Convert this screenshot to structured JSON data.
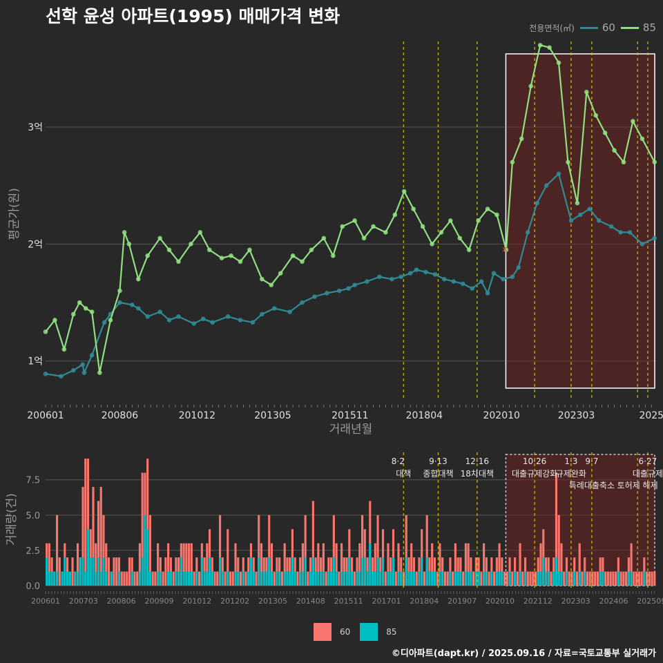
{
  "title": "선학 윤성 아파트(1995) 매매가격 변화",
  "legend": {
    "title": "전용면적(㎡)",
    "items": [
      {
        "label": "60",
        "line_color": "#2f8c96",
        "bar_color": "#f8766d"
      },
      {
        "label": "85",
        "line_color": "#90e080",
        "bar_color": "#00bfc4"
      }
    ]
  },
  "footer": "©디아파트(dapt.kr) / 2025.09.16 / 자료=국토교통부 실거래가",
  "chart_data": [
    {
      "type": "line",
      "title": "평균가",
      "xlabel": "거래년월",
      "ylabel": "평균가(원)",
      "x_tick_labels": [
        "200601",
        "200806",
        "201012",
        "201305",
        "201511",
        "201804",
        "202010",
        "202303",
        "2025"
      ],
      "y_tick_labels": [
        "1억",
        "2억",
        "3억"
      ],
      "y_ticks": [
        1,
        2,
        3
      ],
      "ylim": [
        0.65,
        3.85
      ],
      "xlim": [
        2006.0,
        2025.75
      ],
      "unit": "억원",
      "series": [
        {
          "name": "60",
          "x": [
            2006.0,
            2006.5,
            2006.9,
            2007.2,
            2007.25,
            2007.5,
            2007.9,
            2008.1,
            2008.4,
            2008.8,
            2009.0,
            2009.3,
            2009.7,
            2010.0,
            2010.3,
            2010.8,
            2011.1,
            2011.4,
            2011.9,
            2012.3,
            2012.7,
            2013.0,
            2013.4,
            2013.9,
            2014.3,
            2014.7,
            2015.1,
            2015.5,
            2015.8,
            2016.0,
            2016.4,
            2016.8,
            2017.2,
            2017.5,
            2017.8,
            2018.0,
            2018.3,
            2018.6,
            2018.9,
            2019.2,
            2019.5,
            2019.8,
            2020.1,
            2020.3,
            2020.5,
            2020.8,
            2021.1,
            2021.3,
            2021.6,
            2021.9,
            2022.2,
            2022.6,
            2023.0,
            2023.3,
            2023.6,
            2023.9,
            2024.3,
            2024.6,
            2024.9,
            2025.3,
            2025.7
          ],
          "y": [
            0.89,
            0.87,
            0.92,
            0.97,
            0.9,
            1.05,
            1.33,
            1.4,
            1.5,
            1.48,
            1.45,
            1.38,
            1.42,
            1.35,
            1.38,
            1.32,
            1.36,
            1.33,
            1.38,
            1.35,
            1.33,
            1.4,
            1.45,
            1.42,
            1.5,
            1.55,
            1.58,
            1.6,
            1.62,
            1.65,
            1.68,
            1.72,
            1.7,
            1.72,
            1.75,
            1.78,
            1.76,
            1.74,
            1.7,
            1.68,
            1.66,
            1.62,
            1.68,
            1.58,
            1.75,
            1.7,
            1.72,
            1.8,
            2.1,
            2.35,
            2.5,
            2.6,
            2.2,
            2.25,
            2.3,
            2.2,
            2.15,
            2.1,
            2.1,
            2.0,
            2.05
          ]
        },
        {
          "name": "85",
          "x": [
            2006.0,
            2006.3,
            2006.6,
            2006.9,
            2007.1,
            2007.3,
            2007.5,
            2007.75,
            2008.1,
            2008.4,
            2008.55,
            2008.7,
            2009.0,
            2009.3,
            2009.7,
            2010.0,
            2010.3,
            2010.7,
            2011.0,
            2011.3,
            2011.7,
            2012.0,
            2012.3,
            2012.6,
            2013.0,
            2013.3,
            2013.6,
            2014.0,
            2014.3,
            2014.6,
            2015.0,
            2015.3,
            2015.6,
            2016.0,
            2016.3,
            2016.6,
            2017.0,
            2017.3,
            2017.6,
            2017.9,
            2018.2,
            2018.5,
            2018.8,
            2019.1,
            2019.4,
            2019.7,
            2020.0,
            2020.3,
            2020.6,
            2020.9,
            2021.1,
            2021.4,
            2021.7,
            2022.0,
            2022.3,
            2022.6,
            2022.9,
            2023.2,
            2023.5,
            2023.8,
            2024.1,
            2024.4,
            2024.7,
            2025.0,
            2025.3,
            2025.7
          ],
          "y": [
            1.25,
            1.35,
            1.1,
            1.4,
            1.5,
            1.45,
            1.42,
            0.9,
            1.35,
            1.6,
            2.1,
            2.0,
            1.7,
            1.9,
            2.05,
            1.95,
            1.85,
            2.0,
            2.1,
            1.95,
            1.88,
            1.9,
            1.85,
            1.95,
            1.7,
            1.65,
            1.75,
            1.9,
            1.85,
            1.95,
            2.05,
            1.9,
            2.15,
            2.2,
            2.05,
            2.15,
            2.1,
            2.25,
            2.45,
            2.3,
            2.15,
            2.0,
            2.1,
            2.2,
            2.05,
            1.95,
            2.2,
            2.3,
            2.25,
            1.95,
            2.7,
            2.9,
            3.35,
            3.7,
            3.68,
            3.55,
            2.7,
            2.35,
            3.3,
            3.1,
            2.95,
            2.8,
            2.7,
            3.05,
            2.9,
            2.7
          ]
        }
      ]
    },
    {
      "type": "bar",
      "title": "거래량",
      "xlabel": "",
      "ylabel": "거래량(건)",
      "x_tick_labels": [
        "200601",
        "200703",
        "200806",
        "200909",
        "201012",
        "201202",
        "201305",
        "201408",
        "201511",
        "201701",
        "201804",
        "201907",
        "202010",
        "202112",
        "202303",
        "202406",
        "202509"
      ],
      "y_tick_labels": [
        "0.0",
        "2.5",
        "5.0",
        "7.5"
      ],
      "y_ticks": [
        0,
        2.5,
        5.0,
        7.5
      ],
      "ylim": [
        0,
        9.2
      ],
      "xlim": [
        2006.0,
        2025.75
      ],
      "series": [
        {
          "name": "60",
          "values": [
            3,
            3,
            2,
            1,
            5,
            2,
            1,
            3,
            2,
            1,
            2,
            1,
            3,
            2,
            7,
            9,
            9,
            4,
            7,
            3,
            6,
            7,
            5,
            3,
            2,
            1,
            2,
            2,
            2,
            1,
            1,
            1,
            2,
            2,
            1,
            1,
            3,
            8,
            8,
            9,
            5,
            1,
            1,
            3,
            2,
            1,
            2,
            3,
            2,
            1,
            2,
            2,
            3,
            3,
            3,
            3,
            3,
            1,
            2,
            1,
            3,
            2,
            3,
            4,
            2,
            1,
            1,
            5,
            2,
            1,
            4,
            1,
            1,
            3,
            2,
            1,
            2,
            1,
            2,
            3,
            2,
            1,
            5,
            3,
            2,
            2,
            5,
            3,
            1,
            2,
            2,
            1,
            3,
            2,
            2,
            4,
            2,
            1,
            2,
            3,
            5,
            1,
            2,
            6,
            2,
            3,
            2,
            3,
            1,
            2,
            2,
            5,
            3,
            1,
            3,
            2,
            2,
            4,
            2,
            1,
            2,
            3,
            5,
            4,
            2,
            6,
            2,
            3,
            5,
            2,
            4,
            1,
            3,
            2,
            4,
            1,
            3,
            2,
            1,
            5,
            2,
            3,
            2,
            1,
            2,
            4,
            1,
            5,
            2,
            3,
            2,
            1,
            3,
            2,
            1,
            1,
            2,
            1,
            3,
            2,
            2,
            1,
            3,
            3,
            2,
            1,
            2,
            2,
            1,
            3,
            2,
            1,
            2,
            1,
            2,
            3,
            2,
            1,
            1,
            2,
            1,
            2,
            1,
            3,
            1,
            2,
            1,
            1,
            1,
            1,
            2,
            3,
            4,
            2,
            2,
            1,
            2,
            8,
            5,
            3,
            1,
            2,
            1,
            1,
            2,
            1,
            3,
            1,
            2,
            1,
            1,
            1,
            1,
            1,
            2,
            2,
            1,
            1,
            1,
            1,
            1,
            2,
            1,
            1,
            1,
            2,
            3,
            1,
            1,
            1,
            1,
            2,
            1,
            1,
            1,
            1
          ]
        },
        {
          "name": "85",
          "values": [
            2,
            1,
            1,
            1,
            1,
            0,
            1,
            2,
            1,
            1,
            0,
            1,
            1,
            2,
            2,
            1,
            4,
            2,
            2,
            1,
            2,
            1,
            2,
            1,
            0,
            1,
            0,
            0,
            1,
            0,
            0,
            0,
            0,
            1,
            0,
            0,
            1,
            2,
            5,
            4,
            1,
            0,
            0,
            1,
            1,
            0,
            0,
            1,
            1,
            0,
            1,
            1,
            2,
            1,
            1,
            1,
            1,
            0,
            1,
            0,
            2,
            1,
            1,
            2,
            1,
            0,
            0,
            2,
            1,
            0,
            1,
            0,
            0,
            1,
            1,
            0,
            1,
            0,
            1,
            2,
            1,
            0,
            2,
            1,
            1,
            1,
            2,
            1,
            0,
            1,
            1,
            0,
            1,
            1,
            1,
            2,
            1,
            0,
            1,
            1,
            2,
            0,
            1,
            2,
            1,
            1,
            1,
            1,
            0,
            1,
            1,
            2,
            1,
            0,
            1,
            1,
            1,
            2,
            1,
            0,
            1,
            1,
            2,
            2,
            1,
            3,
            1,
            1,
            2,
            1,
            2,
            0,
            1,
            1,
            2,
            0,
            1,
            1,
            0,
            2,
            1,
            1,
            1,
            0,
            1,
            2,
            0,
            2,
            1,
            1,
            1,
            0,
            1,
            1,
            0,
            0,
            1,
            0,
            1,
            1,
            1,
            0,
            1,
            1,
            1,
            0,
            1,
            1,
            0,
            1,
            1,
            0,
            1,
            0,
            1,
            1,
            1,
            0,
            0,
            1,
            0,
            1,
            0,
            1,
            0,
            1,
            0,
            0,
            0,
            0,
            1,
            1,
            2,
            1,
            1,
            0,
            1,
            2,
            1,
            1,
            0,
            1,
            0,
            0,
            1,
            0,
            1,
            0,
            1,
            0,
            0,
            0,
            0,
            0,
            1,
            1,
            0,
            0,
            0,
            0,
            0,
            1,
            0,
            0,
            0,
            1,
            1,
            0,
            0,
            0,
            0,
            1,
            0,
            0,
            0,
            0
          ]
        }
      ]
    }
  ],
  "policy_events": [
    {
      "x": 2017.58,
      "date": "8·2",
      "label": "대책"
    },
    {
      "x": 2018.7,
      "date": "9·13",
      "label": "종합대책"
    },
    {
      "x": 2019.96,
      "date": "12·16",
      "label": "18차대책"
    },
    {
      "x": 2021.82,
      "date": "10·26",
      "label": "대출규제강화"
    },
    {
      "x": 2023.0,
      "date": "1·3",
      "label": "규제완화"
    },
    {
      "x": 2023.67,
      "date": "9·7",
      "label": "특례대출축소"
    },
    {
      "x": 2025.15,
      "date": "",
      "label": "토허제 해제"
    },
    {
      "x": 2025.48,
      "date": "6·27",
      "label": "대출규제"
    }
  ],
  "highlight_period": {
    "start": 2020.8,
    "end": 2025.75
  },
  "marker_note": "×"
}
